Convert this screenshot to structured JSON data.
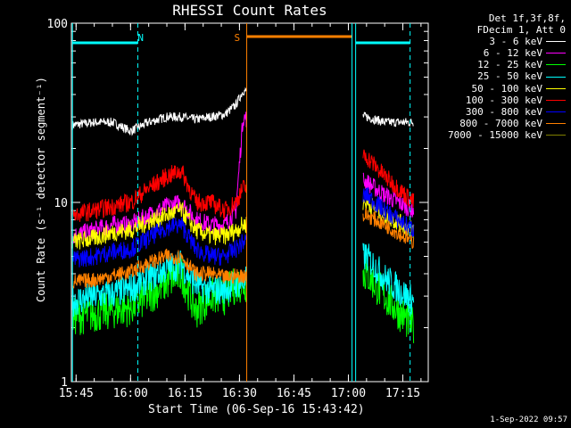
{
  "chart_data": {
    "type": "line",
    "title": "RHESSI Count Rates",
    "xlabel": "Start Time (06-Sep-16 15:43:42)",
    "ylabel": "Count Rate (s⁻¹ detector segment⁻¹)",
    "yscale": "log",
    "ylim": [
      1,
      100
    ],
    "yticks": [
      "1",
      "10",
      "100"
    ],
    "xlim": [
      "15:43:42",
      "17:22:00"
    ],
    "xticks": [
      "15:45",
      "16:00",
      "16:15",
      "16:30",
      "16:45",
      "17:00",
      "17:15"
    ],
    "legend_header": [
      "Det 1f,3f,8f,",
      "FDecim 1, Att 0"
    ],
    "legend_placement": "outside-right",
    "series": [
      {
        "name": "3 - 6 keV",
        "color": "#ffffff",
        "x": [
          "15:44",
          "15:50",
          "15:55",
          "16:00",
          "16:05",
          "16:10",
          "16:14",
          "16:18",
          "16:22",
          "16:26",
          "16:29",
          "16:31",
          "17:05",
          "17:10",
          "17:18"
        ],
        "values": [
          27,
          28,
          28,
          25,
          28,
          30,
          30,
          29,
          30,
          31,
          35,
          42,
          30,
          28,
          28
        ]
      },
      {
        "name": "6 - 12 keV",
        "color": "#ff00ff",
        "x": [
          "15:44",
          "15:50",
          "15:55",
          "16:00",
          "16:05",
          "16:10",
          "16:14",
          "16:18",
          "16:22",
          "16:26",
          "16:29",
          "16:31",
          "17:05",
          "17:10",
          "17:18"
        ],
        "values": [
          6.5,
          7,
          7.5,
          7.5,
          8.5,
          9.5,
          10,
          8,
          7.5,
          7.5,
          9,
          30,
          13,
          11,
          9
        ]
      },
      {
        "name": "12 - 25 keV",
        "color": "#00ff00",
        "x": [
          "15:44",
          "15:50",
          "15:55",
          "16:00",
          "16:05",
          "16:10",
          "16:14",
          "16:18",
          "16:22",
          "16:26",
          "16:29",
          "16:31",
          "17:05",
          "17:10",
          "17:18"
        ],
        "values": [
          2.3,
          2.4,
          2.5,
          2.6,
          3,
          3.6,
          4,
          2.5,
          3,
          3,
          3.5,
          3.5,
          4,
          3,
          2
        ]
      },
      {
        "name": "25 - 50 keV",
        "color": "#00ffff",
        "x": [
          "15:44",
          "15:50",
          "15:55",
          "16:00",
          "16:05",
          "16:10",
          "16:14",
          "16:18",
          "16:22",
          "16:26",
          "16:29",
          "16:31",
          "17:05",
          "17:10",
          "17:18"
        ],
        "values": [
          2.8,
          3,
          3.1,
          3.3,
          3.8,
          4.3,
          4.5,
          3.5,
          3.2,
          3.3,
          3.5,
          3.6,
          5,
          3.8,
          2.8
        ]
      },
      {
        "name": "50 - 100 keV",
        "color": "#ffff00",
        "x": [
          "15:44",
          "15:50",
          "15:55",
          "16:00",
          "16:05",
          "16:10",
          "16:14",
          "16:18",
          "16:22",
          "16:26",
          "16:29",
          "16:31",
          "17:05",
          "17:10",
          "17:18"
        ],
        "values": [
          6,
          6.3,
          6.8,
          7,
          7.8,
          8.5,
          9,
          7,
          6.5,
          6.5,
          7,
          7.5,
          10,
          8.5,
          7
        ]
      },
      {
        "name": "100 - 300 keV",
        "color": "#ff0000",
        "x": [
          "15:44",
          "15:50",
          "15:55",
          "16:00",
          "16:05",
          "16:10",
          "16:14",
          "16:18",
          "16:22",
          "16:26",
          "16:29",
          "16:31",
          "17:05",
          "17:10",
          "17:18"
        ],
        "values": [
          8.5,
          9,
          9.5,
          10,
          12,
          14,
          15,
          10,
          10,
          9,
          10,
          12,
          18,
          14,
          10
        ]
      },
      {
        "name": "300 - 800 keV",
        "color": "#0000ff",
        "x": [
          "15:44",
          "15:50",
          "15:55",
          "16:00",
          "16:05",
          "16:10",
          "16:14",
          "16:18",
          "16:22",
          "16:26",
          "16:29",
          "16:31",
          "17:05",
          "17:10",
          "17:18"
        ],
        "values": [
          4.8,
          5,
          5.3,
          5.5,
          6.3,
          7.3,
          7.5,
          5.5,
          5,
          5,
          5.5,
          6,
          11,
          9,
          7
        ]
      },
      {
        "name": "800 - 7000 keV",
        "color": "#ff8000",
        "x": [
          "15:44",
          "15:50",
          "15:55",
          "16:00",
          "16:05",
          "16:10",
          "16:14",
          "16:18",
          "16:22",
          "16:26",
          "16:29",
          "16:31",
          "17:05",
          "17:10",
          "17:18"
        ],
        "values": [
          3.6,
          3.7,
          3.9,
          4.1,
          4.6,
          5,
          5,
          4,
          4,
          3.8,
          3.9,
          3.9,
          8.5,
          7.5,
          6
        ]
      },
      {
        "name": "7000 - 15000 keV",
        "color": "#808000",
        "x": [],
        "values": []
      }
    ],
    "gap_start": "16:32",
    "gap_end": "17:04",
    "annotations": [
      {
        "text": "N",
        "x": "16:00",
        "color": "#00ffff"
      },
      {
        "text": "S",
        "x": "16:32",
        "color": "#ff8000"
      }
    ],
    "night_intervals": [
      [
        "15:44",
        "16:02"
      ],
      [
        "17:02",
        "17:17"
      ]
    ],
    "saa_interval": [
      "16:32",
      "17:01"
    ]
  },
  "footer": "1-Sep-2022 09:57"
}
